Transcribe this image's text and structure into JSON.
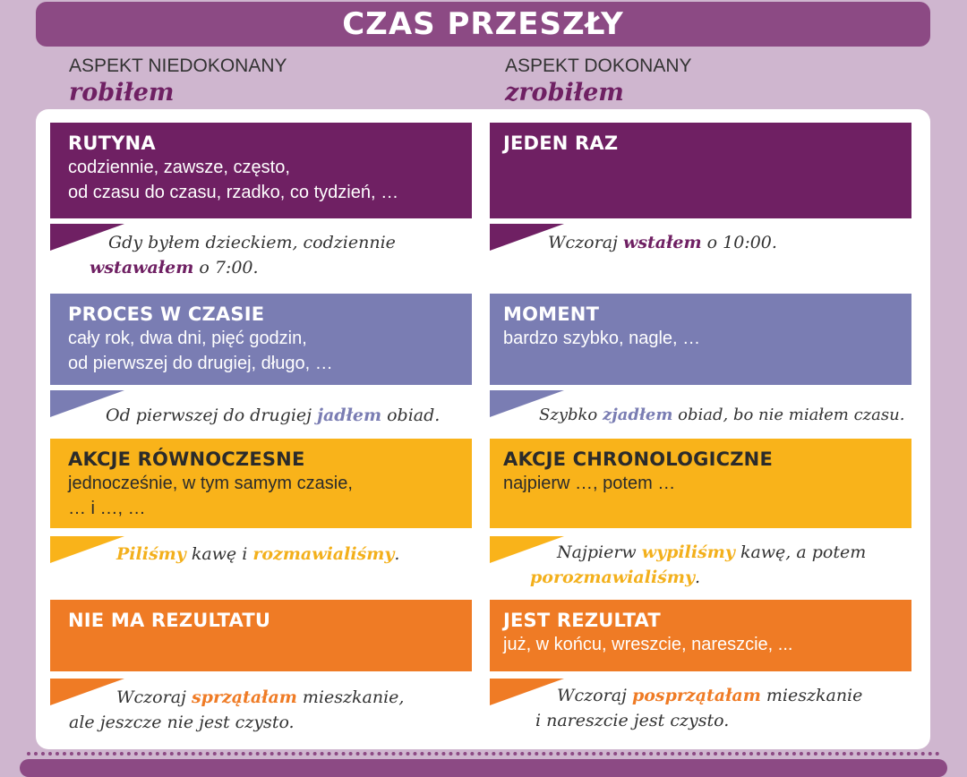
{
  "title": "CZAS PRZESZŁY",
  "colors": {
    "purple": "#6f2063",
    "blue": "#7a7db3",
    "yellow": "#f9b31a",
    "orange": "#ef7b25",
    "header": "#8c4a84",
    "background": "#cfb6cf"
  },
  "left": {
    "aspect": "ASPEKT NIEDOKONANY",
    "verb": "robiłem",
    "sections": [
      {
        "title": "RUTYNA",
        "lines": [
          "codziennie, zawsze, często,",
          "od czasu do czasu, rzadko, co tydzień, …"
        ],
        "example": [
          {
            "t": "Gdy byłem dzieckiem, codziennie"
          },
          {
            "t": "wstawałem",
            "hl": true
          },
          {
            "t": " o 7:00."
          }
        ]
      },
      {
        "title": "PROCES W CZASIE",
        "lines": [
          "cały rok, dwa dni, pięć godzin,",
          "od pierwszej do drugiej, długo, …"
        ],
        "example": [
          {
            "t": "Od pierwszej do drugiej "
          },
          {
            "t": "jadłem",
            "hl": true
          },
          {
            "t": " obiad."
          }
        ]
      },
      {
        "title": "AKCJE RÓWNOCZESNE",
        "lines": [
          "jednocześnie, w tym samym czasie,",
          "… i …, …"
        ],
        "example": [
          {
            "t": "Piliśmy",
            "hl": true
          },
          {
            "t": " kawę i "
          },
          {
            "t": "rozmawialiśmy",
            "hl": true
          },
          {
            "t": "."
          }
        ]
      },
      {
        "title": "NIE MA REZULTATU",
        "lines": [],
        "example": [
          {
            "t": "Wczoraj "
          },
          {
            "t": "sprzątałam",
            "hl": true
          },
          {
            "t": " mieszkanie,"
          },
          {
            "t": "ale jeszcze nie jest czysto."
          }
        ]
      }
    ]
  },
  "right": {
    "aspect": "ASPEKT DOKONANY",
    "verb": "zrobiłem",
    "sections": [
      {
        "title": "JEDEN RAZ",
        "lines": [],
        "example": [
          {
            "t": "Wczoraj "
          },
          {
            "t": "wstałem",
            "hl": true
          },
          {
            "t": " o 10:00."
          }
        ]
      },
      {
        "title": "MOMENT",
        "lines": [
          "bardzo szybko, nagle, …"
        ],
        "example": [
          {
            "t": "Szybko "
          },
          {
            "t": "zjadłem",
            "hl": true
          },
          {
            "t": " obiad, bo nie miałem czasu."
          }
        ]
      },
      {
        "title": "AKCJE CHRONOLOGICZNE",
        "lines": [
          "najpierw …, potem …"
        ],
        "example": [
          {
            "t": "Najpierw "
          },
          {
            "t": "wypiliśmy",
            "hl": true
          },
          {
            "t": " kawę, a potem"
          },
          {
            "t": "porozmawialiśmy",
            "hl": true
          },
          {
            "t": "."
          }
        ]
      },
      {
        "title": "JEST REZULTAT",
        "lines": [
          "już, w końcu, wreszcie, nareszcie, ..."
        ],
        "example": [
          {
            "t": "Wczoraj "
          },
          {
            "t": "posprzątałam",
            "hl": true
          },
          {
            "t": " mieszkanie"
          },
          {
            "t": "i nareszcie jest czysto."
          }
        ]
      }
    ]
  }
}
